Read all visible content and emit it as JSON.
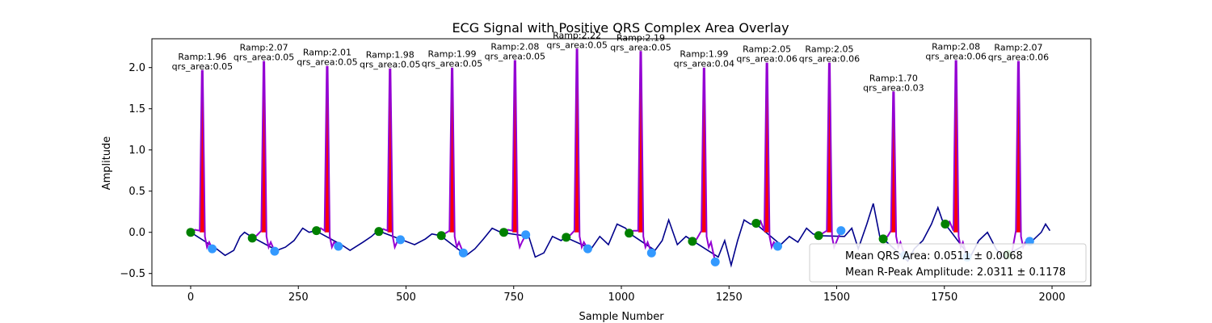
{
  "chart_data": {
    "type": "line",
    "title": "ECG Signal with Positive QRS Complex Area Overlay",
    "xlabel": "Sample Number",
    "ylabel": "Amplitude",
    "xlim": [
      -90,
      2090
    ],
    "ylim": [
      -0.65,
      2.35
    ],
    "xticks": [
      0,
      250,
      500,
      750,
      1000,
      1250,
      1500,
      1750,
      2000
    ],
    "xtick_labels": [
      "0",
      "250",
      "500",
      "750",
      "1000",
      "1250",
      "1500",
      "1750",
      "2000"
    ],
    "yticks": [
      -0.5,
      0.0,
      0.5,
      1.0,
      1.5,
      2.0
    ],
    "ytick_labels": [
      "−0.5",
      "0.0",
      "0.5",
      "1.0",
      "1.5",
      "2.0"
    ],
    "grid": false,
    "legend_placement": "lower-right",
    "colors": {
      "signal": "#00008b",
      "qrs_segment": "#9400d3",
      "qrs_area": "#ff0000",
      "onset_marker": "#008000",
      "offset_marker": "#3399ff"
    },
    "beats": [
      {
        "r_x": 27,
        "r_amp": 1.96,
        "qrs_area": 0.05,
        "annot_line1": "Ramp:1.96",
        "annot_line2": "qrs_area:0.05",
        "onset_x": 0,
        "onset_y": 0.0,
        "offset_x": 50,
        "offset_y": -0.2
      },
      {
        "r_x": 170,
        "r_amp": 2.07,
        "qrs_area": 0.05,
        "annot_line1": "Ramp:2.07",
        "annot_line2": "qrs_area:0.05",
        "onset_x": 143,
        "onset_y": -0.07,
        "offset_x": 195,
        "offset_y": -0.23
      },
      {
        "r_x": 317,
        "r_amp": 2.01,
        "qrs_area": 0.05,
        "annot_line1": "Ramp:2.01",
        "annot_line2": "qrs_area:0.05",
        "onset_x": 292,
        "onset_y": 0.02,
        "offset_x": 343,
        "offset_y": -0.17
      },
      {
        "r_x": 463,
        "r_amp": 1.98,
        "qrs_area": 0.05,
        "annot_line1": "Ramp:1.98",
        "annot_line2": "qrs_area:0.05",
        "onset_x": 437,
        "onset_y": 0.01,
        "offset_x": 487,
        "offset_y": -0.09
      },
      {
        "r_x": 607,
        "r_amp": 1.99,
        "qrs_area": 0.05,
        "annot_line1": "Ramp:1.99",
        "annot_line2": "qrs_area:0.05",
        "onset_x": 582,
        "onset_y": -0.04,
        "offset_x": 633,
        "offset_y": -0.25
      },
      {
        "r_x": 753,
        "r_amp": 2.08,
        "qrs_area": 0.05,
        "annot_line1": "Ramp:2.08",
        "annot_line2": "qrs_area:0.05",
        "onset_x": 727,
        "onset_y": 0.0,
        "offset_x": 778,
        "offset_y": -0.03
      },
      {
        "r_x": 897,
        "r_amp": 2.22,
        "qrs_area": 0.05,
        "annot_line1": "Ramp:2.22",
        "annot_line2": "qrs_area:0.05",
        "onset_x": 872,
        "onset_y": -0.06,
        "offset_x": 922,
        "offset_y": -0.2
      },
      {
        "r_x": 1045,
        "r_amp": 2.19,
        "qrs_area": 0.05,
        "annot_line1": "Ramp:2.19",
        "annot_line2": "qrs_area:0.05",
        "onset_x": 1018,
        "onset_y": -0.01,
        "offset_x": 1070,
        "offset_y": -0.25
      },
      {
        "r_x": 1192,
        "r_amp": 1.99,
        "qrs_area": 0.04,
        "annot_line1": "Ramp:1.99",
        "annot_line2": "qrs_area:0.04",
        "onset_x": 1165,
        "onset_y": -0.11,
        "offset_x": 1218,
        "offset_y": -0.36
      },
      {
        "r_x": 1338,
        "r_amp": 2.05,
        "qrs_area": 0.06,
        "annot_line1": "Ramp:2.05",
        "annot_line2": "qrs_area:0.06",
        "onset_x": 1313,
        "onset_y": 0.11,
        "offset_x": 1363,
        "offset_y": -0.17
      },
      {
        "r_x": 1483,
        "r_amp": 2.05,
        "qrs_area": 0.06,
        "annot_line1": "Ramp:2.05",
        "annot_line2": "qrs_area:0.06",
        "onset_x": 1458,
        "onset_y": -0.04,
        "offset_x": 1510,
        "offset_y": 0.02
      },
      {
        "r_x": 1632,
        "r_amp": 1.7,
        "qrs_area": 0.03,
        "annot_line1": "Ramp:1.70",
        "annot_line2": "qrs_area:0.03",
        "onset_x": 1608,
        "onset_y": -0.08,
        "offset_x": 1658,
        "offset_y": -0.28
      },
      {
        "r_x": 1777,
        "r_amp": 2.08,
        "qrs_area": 0.06,
        "annot_line1": "Ramp:2.08",
        "annot_line2": "qrs_area:0.06",
        "onset_x": 1752,
        "onset_y": 0.1,
        "offset_x": 1803,
        "offset_y": -0.3
      },
      {
        "r_x": 1922,
        "r_amp": 2.07,
        "qrs_area": 0.06,
        "annot_line1": "Ramp:2.07",
        "annot_line2": "qrs_area:0.06",
        "onset_x": 1897,
        "onset_y": -0.27,
        "offset_x": 1948,
        "offset_y": -0.11
      }
    ],
    "baseline_noise": [
      [
        0,
        0.0
      ],
      [
        60,
        -0.2
      ],
      [
        80,
        -0.28
      ],
      [
        100,
        -0.22
      ],
      [
        115,
        -0.05
      ],
      [
        125,
        0.0
      ],
      [
        140,
        -0.05
      ],
      [
        200,
        -0.22
      ],
      [
        220,
        -0.18
      ],
      [
        240,
        -0.1
      ],
      [
        260,
        0.05
      ],
      [
        275,
        0.0
      ],
      [
        290,
        0.02
      ],
      [
        350,
        -0.15
      ],
      [
        370,
        -0.22
      ],
      [
        400,
        -0.12
      ],
      [
        420,
        -0.05
      ],
      [
        435,
        0.02
      ],
      [
        495,
        -0.1
      ],
      [
        520,
        -0.15
      ],
      [
        545,
        -0.08
      ],
      [
        560,
        -0.02
      ],
      [
        580,
        -0.04
      ],
      [
        640,
        -0.28
      ],
      [
        660,
        -0.2
      ],
      [
        680,
        -0.08
      ],
      [
        700,
        0.05
      ],
      [
        720,
        0.0
      ],
      [
        785,
        -0.05
      ],
      [
        800,
        -0.3
      ],
      [
        820,
        -0.25
      ],
      [
        840,
        -0.05
      ],
      [
        860,
        -0.1
      ],
      [
        870,
        -0.06
      ],
      [
        930,
        -0.2
      ],
      [
        950,
        -0.05
      ],
      [
        970,
        -0.15
      ],
      [
        990,
        0.1
      ],
      [
        1010,
        0.05
      ],
      [
        1018,
        -0.01
      ],
      [
        1078,
        -0.22
      ],
      [
        1095,
        -0.1
      ],
      [
        1110,
        0.15
      ],
      [
        1130,
        -0.15
      ],
      [
        1150,
        -0.05
      ],
      [
        1165,
        -0.1
      ],
      [
        1225,
        -0.3
      ],
      [
        1240,
        -0.1
      ],
      [
        1255,
        -0.4
      ],
      [
        1270,
        -0.1
      ],
      [
        1285,
        0.15
      ],
      [
        1300,
        0.1
      ],
      [
        1313,
        0.1
      ],
      [
        1370,
        -0.15
      ],
      [
        1390,
        -0.05
      ],
      [
        1410,
        -0.12
      ],
      [
        1430,
        0.05
      ],
      [
        1445,
        -0.02
      ],
      [
        1458,
        -0.04
      ],
      [
        1518,
        -0.05
      ],
      [
        1535,
        0.05
      ],
      [
        1550,
        -0.2
      ],
      [
        1570,
        0.1
      ],
      [
        1585,
        0.35
      ],
      [
        1600,
        -0.05
      ],
      [
        1608,
        -0.08
      ],
      [
        1665,
        -0.35
      ],
      [
        1680,
        -0.2
      ],
      [
        1700,
        -0.1
      ],
      [
        1720,
        0.1
      ],
      [
        1735,
        0.3
      ],
      [
        1745,
        0.15
      ],
      [
        1752,
        0.1
      ],
      [
        1810,
        -0.3
      ],
      [
        1830,
        -0.1
      ],
      [
        1850,
        0.0
      ],
      [
        1870,
        -0.2
      ],
      [
        1885,
        -0.3
      ],
      [
        1897,
        -0.27
      ],
      [
        1955,
        -0.1
      ],
      [
        1975,
        0.0
      ],
      [
        1985,
        0.1
      ],
      [
        1995,
        0.02
      ]
    ],
    "legend": [
      {
        "text": "Mean QRS Area: 0.0511 ± 0.0068"
      },
      {
        "text": "Mean R-Peak Amplitude: 2.0311 ± 0.1178"
      }
    ]
  }
}
